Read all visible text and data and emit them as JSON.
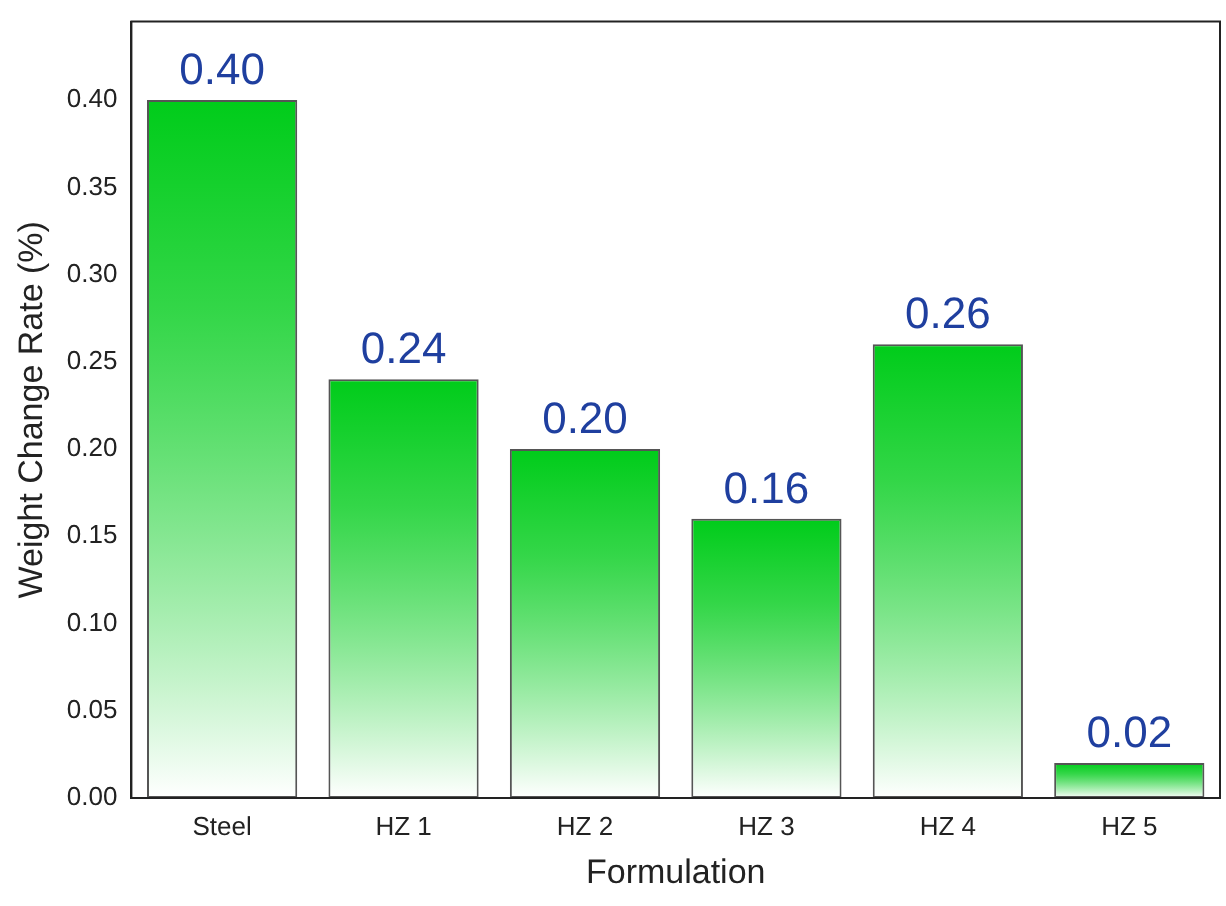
{
  "chart_data": {
    "type": "bar",
    "xlabel": "Formulation",
    "ylabel": "Weight Change Rate (%)",
    "categories": [
      "Steel",
      "HZ 1",
      "HZ 2",
      "HZ 3",
      "HZ 4",
      "HZ 5"
    ],
    "values": [
      0.4,
      0.24,
      0.2,
      0.16,
      0.26,
      0.02
    ],
    "value_labels": [
      "0.40",
      "0.24",
      "0.20",
      "0.16",
      "0.26",
      "0.02"
    ],
    "color": "#00cc1a",
    "ylim": [
      0,
      0.445
    ],
    "yticks": [
      {
        "value": 0,
        "label": "0.00"
      },
      {
        "value": 0.05,
        "label": "0.05"
      },
      {
        "value": 0.1,
        "label": "0.10"
      },
      {
        "value": 0.15,
        "label": "0.15"
      },
      {
        "value": 0.2,
        "label": "0.20"
      },
      {
        "value": 0.25,
        "label": "0.25"
      },
      {
        "value": 0.3,
        "label": "0.30"
      },
      {
        "value": 0.35,
        "label": "0.35"
      },
      {
        "value": 0.4,
        "label": "0.40"
      }
    ],
    "grid": false,
    "legend": false
  }
}
